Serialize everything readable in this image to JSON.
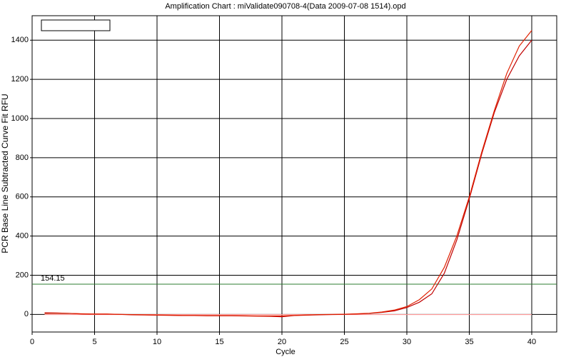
{
  "chart_data": {
    "type": "line",
    "title": "Amplification Chart : miValidate090708-4(Data 2009-07-08 1514).opd",
    "x_label": "Cycle",
    "y_label": "PCR Base Line Subtracted Curve Fit RFU",
    "x": [
      1,
      2,
      3,
      4,
      5,
      6,
      7,
      8,
      9,
      10,
      11,
      12,
      13,
      14,
      15,
      16,
      17,
      18,
      19,
      20,
      21,
      22,
      23,
      24,
      25,
      26,
      27,
      28,
      29,
      30,
      31,
      32,
      33,
      34,
      35,
      36,
      37,
      38,
      39,
      40
    ],
    "series": [
      {
        "color": "#e02000",
        "values": [
          5,
          6,
          5,
          3,
          2,
          2,
          0,
          -1,
          -2,
          -3,
          -4,
          -5,
          -5,
          -6,
          -6,
          -6,
          -7,
          -8,
          -8,
          -8,
          -5,
          -3,
          -1,
          0,
          1,
          3,
          6,
          12,
          22,
          40,
          75,
          130,
          240,
          400,
          600,
          830,
          1040,
          1230,
          1370,
          1450
        ]
      },
      {
        "color": "#c00000",
        "values": [
          8,
          7,
          5,
          2,
          1,
          1,
          0,
          -2,
          -3,
          -4,
          -5,
          -6,
          -6,
          -7,
          -7,
          -7,
          -8,
          -9,
          -10,
          -12,
          -6,
          -4,
          -2,
          -1,
          0,
          2,
          5,
          10,
          18,
          35,
          62,
          105,
          210,
          380,
          590,
          820,
          1030,
          1200,
          1320,
          1400
        ]
      },
      {
        "color": "#ff9a9a",
        "values": [
          -1,
          -1,
          -1,
          -1,
          -1,
          -1,
          -1,
          -1,
          -1,
          -1,
          -1,
          -1,
          -1,
          -1,
          -1,
          -1,
          -1,
          -1,
          -1,
          -1,
          -1,
          -1,
          -1,
          -1,
          -1,
          -1,
          -1,
          -1,
          -1,
          -1,
          -1,
          -1,
          -1,
          -1,
          -1,
          -1,
          -1,
          -1,
          -1,
          -1
        ]
      }
    ],
    "threshold": 154.15,
    "threshold_color": "#2e7d32",
    "xlim": [
      0,
      42
    ],
    "xticks": [
      0,
      5,
      10,
      15,
      20,
      25,
      30,
      35,
      40
    ],
    "ylim": [
      -90,
      1525
    ],
    "yticks": [
      0,
      200,
      400,
      600,
      800,
      1000,
      1200,
      1400
    ],
    "grid": true
  }
}
